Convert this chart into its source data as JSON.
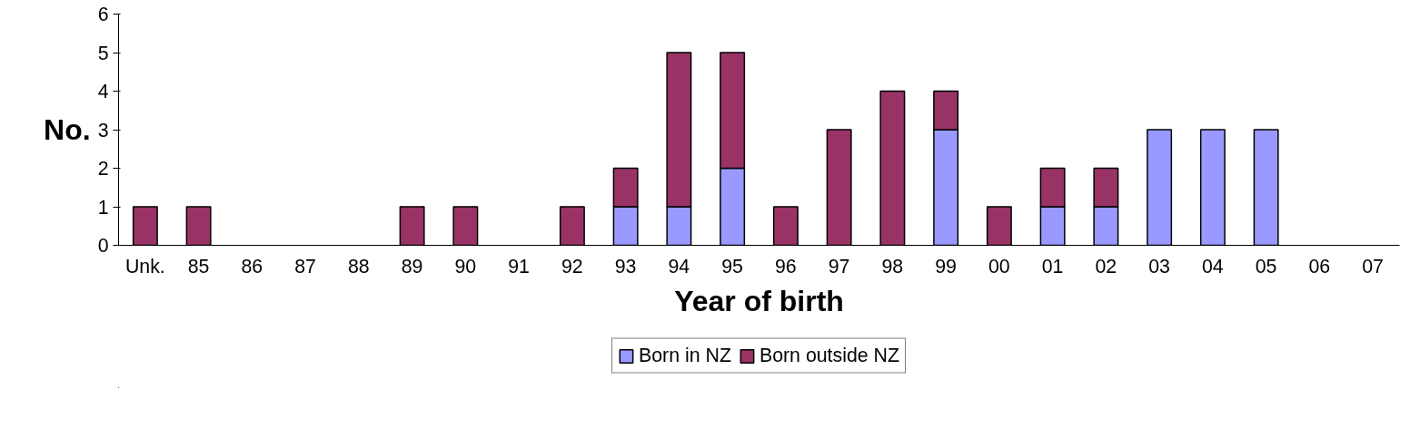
{
  "chart_data": {
    "type": "bar",
    "stacked": true,
    "xlabel": "Year of birth",
    "ylabel": "No.",
    "categories": [
      "Unk.",
      "85",
      "86",
      "87",
      "88",
      "89",
      "90",
      "91",
      "92",
      "93",
      "94",
      "95",
      "96",
      "97",
      "98",
      "99",
      "00",
      "01",
      "02",
      "03",
      "04",
      "05",
      "06",
      "07"
    ],
    "series": [
      {
        "name": "Born in NZ",
        "color": "#9999ff",
        "values": [
          null,
          null,
          null,
          null,
          null,
          null,
          null,
          null,
          null,
          1,
          1,
          2,
          null,
          null,
          null,
          3,
          null,
          1,
          1,
          3,
          3,
          3,
          null,
          null
        ]
      },
      {
        "name": "Born outside NZ",
        "color": "#993366",
        "values": [
          1,
          1,
          null,
          null,
          null,
          1,
          1,
          null,
          1,
          1,
          4,
          3,
          1,
          3,
          4,
          1,
          1,
          1,
          1,
          null,
          null,
          null,
          null,
          null
        ]
      }
    ],
    "ylim": [
      0,
      6
    ],
    "yticks": [
      0,
      1,
      2,
      3,
      4,
      5,
      6
    ],
    "grid": false,
    "legend": "bottom"
  }
}
